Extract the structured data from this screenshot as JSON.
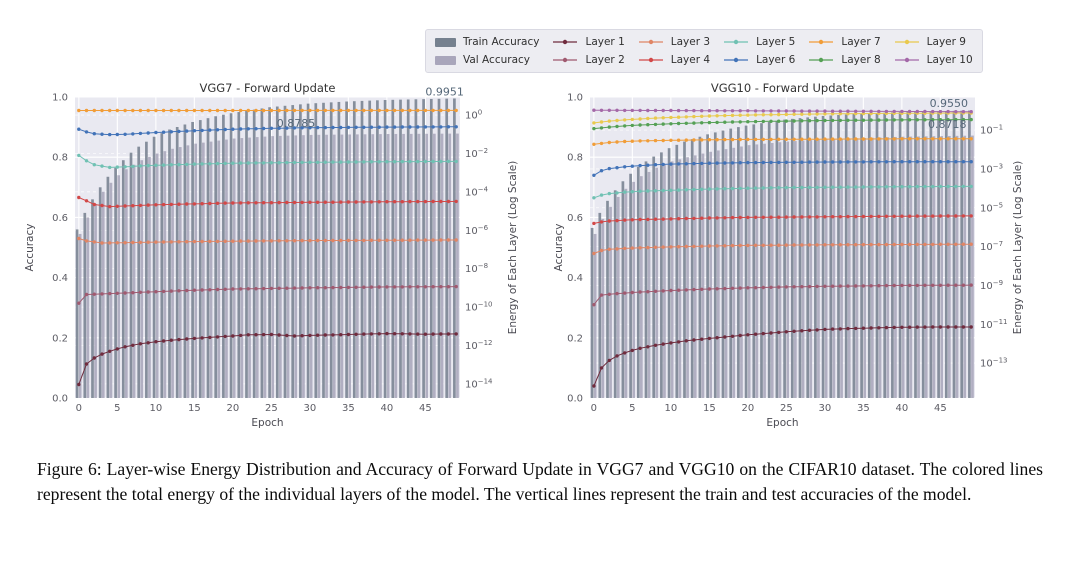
{
  "figure": {
    "caption": "Figure 6: Layer-wise Energy Distribution and Accuracy of Forward Update in VGG7 and VGG10 on the CIFAR10 dataset. The colored lines represent the total energy of the individual layers of the model. The vertical lines represent the train and test accuracies of the model."
  },
  "legend": {
    "items": [
      {
        "label": "Train Accuracy",
        "type": "bar",
        "color": "#76818f"
      },
      {
        "label": "Val Accuracy",
        "type": "bar",
        "color": "#a9a6bb"
      },
      {
        "label": "Layer 1",
        "type": "line",
        "color": "#702c3e"
      },
      {
        "label": "Layer 2",
        "type": "line",
        "color": "#a05a70"
      },
      {
        "label": "Layer 3",
        "type": "line",
        "color": "#e08565"
      },
      {
        "label": "Layer 4",
        "type": "line",
        "color": "#d24848"
      },
      {
        "label": "Layer 5",
        "type": "line",
        "color": "#70c1b3"
      },
      {
        "label": "Layer 6",
        "type": "line",
        "color": "#4273b8"
      },
      {
        "label": "Layer 7",
        "type": "line",
        "color": "#f19d38"
      },
      {
        "label": "Layer 8",
        "type": "line",
        "color": "#55a055"
      },
      {
        "label": "Layer 9",
        "type": "line",
        "color": "#e9c94e"
      },
      {
        "label": "Layer 10",
        "type": "line",
        "color": "#a468a8"
      }
    ]
  },
  "chart_data": [
    {
      "type": "bar+line",
      "title": "VGG7 - Forward Update",
      "xlabel": "Epoch",
      "ylabel_left": "Accuracy",
      "ylabel_right": "Energy of Each Layer (Log Scale)",
      "x_ticks": [
        0,
        5,
        10,
        15,
        20,
        25,
        30,
        35,
        40,
        45
      ],
      "y_ticks_left": [
        "0.0",
        "0.2",
        "0.4",
        "0.6",
        "0.8",
        "1.0"
      ],
      "ylim_left": [
        0,
        1
      ],
      "epochs": 50,
      "grid": true,
      "right_axis_ticks": [
        {
          "exp": "0",
          "pos": 0.94
        },
        {
          "exp": "−2",
          "pos": 0.812
        },
        {
          "exp": "−4",
          "pos": 0.685
        },
        {
          "exp": "−6",
          "pos": 0.557
        },
        {
          "exp": "−8",
          "pos": 0.43
        },
        {
          "exp": "−10",
          "pos": 0.302
        },
        {
          "exp": "−12",
          "pos": 0.174
        },
        {
          "exp": "−14",
          "pos": 0.047
        }
      ],
      "annotations": [
        {
          "text": "0.9951",
          "series": "train_accuracy_final",
          "epoch": 47.5,
          "acc": 1.005
        },
        {
          "text": "0.8785",
          "series": "val_accuracy_final",
          "epoch": 28.2,
          "acc": 0.9
        }
      ],
      "train_acc": {
        "color": "#76818f",
        "x": [
          0,
          1,
          2,
          3,
          4,
          5,
          6,
          7,
          8,
          10,
          12,
          15,
          18,
          20,
          25,
          30,
          35,
          40,
          45,
          49
        ],
        "y": [
          0.56,
          0.615,
          0.66,
          0.7,
          0.735,
          0.765,
          0.79,
          0.815,
          0.835,
          0.868,
          0.892,
          0.917,
          0.936,
          0.946,
          0.966,
          0.978,
          0.985,
          0.99,
          0.993,
          0.9951
        ]
      },
      "val_acc": {
        "color": "#a9a6bb",
        "x": [
          0,
          1,
          2,
          3,
          4,
          5,
          6,
          8,
          10,
          12,
          15,
          20,
          25,
          30,
          40,
          49
        ],
        "y": [
          0.545,
          0.6,
          0.645,
          0.685,
          0.715,
          0.74,
          0.76,
          0.79,
          0.812,
          0.828,
          0.845,
          0.862,
          0.87,
          0.874,
          0.877,
          0.8785
        ]
      },
      "layers_note": "line positions are plotted against the left accuracy axis; energies are read from the right log axis",
      "layers": [
        {
          "name": "Layer 7",
          "color": "#f19d38",
          "final_energy_approx": "~2e0",
          "x": [
            0,
            10,
            20,
            30,
            40,
            49
          ],
          "y": [
            0.955,
            0.955,
            0.955,
            0.9555,
            0.9555,
            0.9555
          ]
        },
        {
          "name": "Layer 6",
          "color": "#4273b8",
          "final_energy_approx": "~2e-1",
          "x": [
            0,
            1,
            2,
            4,
            6,
            8,
            10,
            15,
            20,
            25,
            30,
            40,
            49
          ],
          "y": [
            0.893,
            0.884,
            0.878,
            0.875,
            0.876,
            0.879,
            0.882,
            0.888,
            0.893,
            0.896,
            0.898,
            0.9,
            0.901
          ]
        },
        {
          "name": "Layer 5",
          "color": "#70c1b3",
          "final_energy_approx": "~4e-3",
          "x": [
            0,
            1,
            2,
            4,
            6,
            8,
            10,
            15,
            20,
            30,
            40,
            49
          ],
          "y": [
            0.806,
            0.788,
            0.775,
            0.766,
            0.768,
            0.771,
            0.773,
            0.777,
            0.78,
            0.783,
            0.785,
            0.786
          ]
        },
        {
          "name": "Layer 4",
          "color": "#d24848",
          "final_energy_approx": "~3e-5",
          "x": [
            0,
            1,
            2,
            4,
            6,
            8,
            10,
            15,
            20,
            30,
            40,
            49
          ],
          "y": [
            0.666,
            0.655,
            0.643,
            0.636,
            0.638,
            0.64,
            0.642,
            0.645,
            0.648,
            0.65,
            0.652,
            0.653
          ]
        },
        {
          "name": "Layer 3",
          "color": "#e08565",
          "final_energy_approx": "~3e-7",
          "x": [
            0,
            1,
            3,
            6,
            10,
            20,
            30,
            40,
            49
          ],
          "y": [
            0.53,
            0.522,
            0.515,
            0.516,
            0.518,
            0.521,
            0.523,
            0.524,
            0.525
          ]
        },
        {
          "name": "Layer 2",
          "color": "#a05a70",
          "final_energy_approx": "~1e-9",
          "x": [
            0,
            1,
            3,
            6,
            10,
            15,
            20,
            30,
            40,
            49
          ],
          "y": [
            0.315,
            0.344,
            0.346,
            0.349,
            0.353,
            0.358,
            0.362,
            0.366,
            0.369,
            0.37
          ]
        },
        {
          "name": "Layer 1",
          "color": "#702c3e",
          "final_energy_approx": "~4e-12",
          "x": [
            0,
            1,
            2,
            3,
            4,
            5,
            6,
            8,
            10,
            12,
            15,
            18,
            20,
            22,
            25,
            28,
            30,
            35,
            40,
            45,
            49
          ],
          "y": [
            0.045,
            0.113,
            0.133,
            0.146,
            0.155,
            0.163,
            0.17,
            0.18,
            0.187,
            0.192,
            0.198,
            0.203,
            0.206,
            0.21,
            0.211,
            0.206,
            0.208,
            0.211,
            0.214,
            0.212,
            0.213
          ]
        }
      ]
    },
    {
      "type": "bar+line",
      "title": "VGG10 - Forward Update",
      "xlabel": "Epoch",
      "ylabel_left": "Accuracy",
      "ylabel_right": "Energy of Each Layer (Log Scale)",
      "x_ticks": [
        0,
        5,
        10,
        15,
        20,
        25,
        30,
        35,
        40,
        45
      ],
      "y_ticks_left": [
        "0.0",
        "0.2",
        "0.4",
        "0.6",
        "0.8",
        "1.0"
      ],
      "ylim_left": [
        0,
        1
      ],
      "epochs": 50,
      "grid": true,
      "right_axis_ticks": [
        {
          "exp": "−1",
          "pos": 0.89
        },
        {
          "exp": "−3",
          "pos": 0.761
        },
        {
          "exp": "−5",
          "pos": 0.632
        },
        {
          "exp": "−7",
          "pos": 0.503
        },
        {
          "exp": "−9",
          "pos": 0.374
        },
        {
          "exp": "−11",
          "pos": 0.245
        },
        {
          "exp": "−13",
          "pos": 0.116
        }
      ],
      "annotations": [
        {
          "text": "0.9550",
          "series": "train_accuracy_final",
          "epoch": 46.1,
          "acc": 0.967
        },
        {
          "text": "0.8718",
          "series": "val_accuracy_final",
          "epoch": 45.9,
          "acc": 0.897
        }
      ],
      "train_acc": {
        "color": "#76818f",
        "x": [
          0,
          1,
          2,
          3,
          4,
          5,
          6,
          7,
          8,
          10,
          12,
          15,
          18,
          20,
          25,
          30,
          35,
          40,
          45,
          49
        ],
        "y": [
          0.565,
          0.615,
          0.655,
          0.69,
          0.72,
          0.745,
          0.768,
          0.786,
          0.802,
          0.83,
          0.852,
          0.876,
          0.895,
          0.905,
          0.925,
          0.937,
          0.945,
          0.95,
          0.953,
          0.955
        ]
      },
      "val_acc": {
        "color": "#a9a6bb",
        "x": [
          0,
          1,
          2,
          3,
          4,
          5,
          6,
          8,
          10,
          12,
          15,
          20,
          25,
          30,
          40,
          49
        ],
        "y": [
          0.545,
          0.595,
          0.635,
          0.668,
          0.695,
          0.718,
          0.737,
          0.765,
          0.786,
          0.8,
          0.818,
          0.84,
          0.852,
          0.86,
          0.868,
          0.8718
        ]
      },
      "layers_note": "line positions are plotted against the left accuracy axis; energies are read from the right log axis",
      "layers": [
        {
          "name": "Layer 10",
          "color": "#a468a8",
          "final_energy_approx": "~9e-1",
          "x": [
            0,
            10,
            20,
            30,
            40,
            49
          ],
          "y": [
            0.956,
            0.955,
            0.954,
            0.953,
            0.952,
            0.951
          ]
        },
        {
          "name": "Layer 9",
          "color": "#e9c94e",
          "final_energy_approx": "~8e-1",
          "x": [
            0,
            2,
            4,
            6,
            8,
            10,
            15,
            20,
            25,
            30,
            40,
            49
          ],
          "y": [
            0.914,
            0.92,
            0.924,
            0.927,
            0.93,
            0.932,
            0.937,
            0.94,
            0.942,
            0.944,
            0.946,
            0.947
          ]
        },
        {
          "name": "Layer 8",
          "color": "#55a055",
          "final_energy_approx": "~3e-1",
          "x": [
            0,
            2,
            4,
            6,
            8,
            10,
            15,
            20,
            25,
            30,
            40,
            49
          ],
          "y": [
            0.895,
            0.9,
            0.904,
            0.907,
            0.909,
            0.911,
            0.915,
            0.918,
            0.92,
            0.922,
            0.924,
            0.925
          ]
        },
        {
          "name": "Layer 7",
          "color": "#f19d38",
          "final_energy_approx": "~4e-2",
          "x": [
            0,
            2,
            4,
            6,
            10,
            15,
            20,
            30,
            40,
            49
          ],
          "y": [
            0.843,
            0.849,
            0.852,
            0.854,
            0.856,
            0.858,
            0.859,
            0.86,
            0.861,
            0.861
          ]
        },
        {
          "name": "Layer 6",
          "color": "#4273b8",
          "final_energy_approx": "~2e-3",
          "x": [
            0,
            1,
            2,
            4,
            6,
            8,
            10,
            15,
            20,
            30,
            40,
            49
          ],
          "y": [
            0.74,
            0.755,
            0.762,
            0.768,
            0.772,
            0.775,
            0.777,
            0.78,
            0.782,
            0.784,
            0.785,
            0.785
          ]
        },
        {
          "name": "Layer 5",
          "color": "#70c1b3",
          "final_energy_approx": "~1e-4",
          "x": [
            0,
            1,
            2,
            4,
            6,
            10,
            15,
            20,
            25,
            30,
            40,
            49
          ],
          "y": [
            0.665,
            0.674,
            0.679,
            0.684,
            0.687,
            0.69,
            0.694,
            0.697,
            0.699,
            0.7,
            0.702,
            0.703
          ]
        },
        {
          "name": "Layer 4",
          "color": "#d24848",
          "final_energy_approx": "~4e-6",
          "x": [
            0,
            1,
            2,
            4,
            6,
            10,
            15,
            20,
            30,
            40,
            49
          ],
          "y": [
            0.58,
            0.585,
            0.588,
            0.591,
            0.593,
            0.595,
            0.598,
            0.6,
            0.602,
            0.604,
            0.605
          ]
        },
        {
          "name": "Layer 3",
          "color": "#e08565",
          "final_energy_approx": "~1e-7",
          "x": [
            0,
            1,
            2,
            4,
            6,
            10,
            15,
            20,
            30,
            40,
            49
          ],
          "y": [
            0.48,
            0.49,
            0.494,
            0.497,
            0.499,
            0.502,
            0.505,
            0.507,
            0.509,
            0.51,
            0.511
          ]
        },
        {
          "name": "Layer 2",
          "color": "#a05a70",
          "final_energy_approx": "~1e-9",
          "x": [
            0,
            1,
            3,
            6,
            10,
            15,
            20,
            25,
            30,
            40,
            49
          ],
          "y": [
            0.31,
            0.342,
            0.347,
            0.352,
            0.357,
            0.362,
            0.366,
            0.369,
            0.371,
            0.374,
            0.375
          ]
        },
        {
          "name": "Layer 1",
          "color": "#702c3e",
          "final_energy_approx": "~7e-12",
          "x": [
            0,
            1,
            2,
            3,
            4,
            5,
            6,
            8,
            10,
            12,
            15,
            18,
            20,
            25,
            30,
            35,
            40,
            45,
            49
          ],
          "y": [
            0.04,
            0.1,
            0.125,
            0.14,
            0.15,
            0.158,
            0.165,
            0.175,
            0.183,
            0.19,
            0.198,
            0.205,
            0.21,
            0.22,
            0.228,
            0.232,
            0.235,
            0.236,
            0.236
          ]
        }
      ]
    }
  ]
}
